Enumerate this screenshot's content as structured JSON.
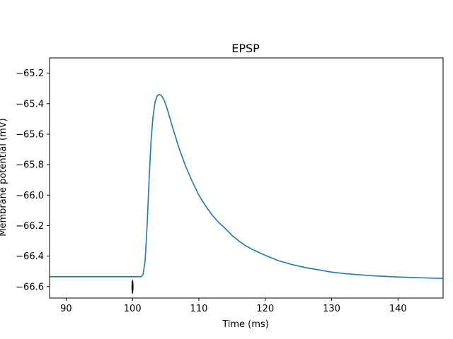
{
  "chart_data": {
    "type": "line",
    "title": "EPSP",
    "xlabel": "Time (ms)",
    "ylabel": "Membrane potential (mV)",
    "xlim": [
      87.5,
      146.8
    ],
    "ylim": [
      -66.675,
      -65.1
    ],
    "grid": false,
    "xticks": [
      90,
      100,
      110,
      120,
      130,
      140
    ],
    "yticks": [
      -66.6,
      -66.4,
      -66.2,
      -66.0,
      -65.8,
      -65.6,
      -65.4,
      -65.2
    ],
    "xtick_labels": [
      "90",
      "100",
      "110",
      "120",
      "130",
      "140"
    ],
    "ytick_labels": [
      "−66.6",
      "−66.4",
      "−66.2",
      "−66.0",
      "−65.8",
      "−65.6",
      "−65.4",
      "−65.2"
    ],
    "series": [
      {
        "color": "#1f77b4",
        "x": [
          87.5,
          90,
          95,
          100,
          101.3,
          101.6,
          101.9,
          102.2,
          102.5,
          102.8,
          103.1,
          103.4,
          103.7,
          104.0,
          104.2,
          104.5,
          104.8,
          105.2,
          105.6,
          106,
          106.5,
          107,
          107.5,
          108,
          109,
          110,
          111,
          112,
          113,
          114,
          115,
          116,
          117,
          118,
          119,
          120,
          122,
          124,
          126,
          128,
          130,
          132,
          134,
          136,
          138,
          140,
          142,
          144,
          146.8
        ],
        "y": [
          -66.535,
          -66.535,
          -66.535,
          -66.535,
          -66.535,
          -66.52,
          -66.43,
          -66.2,
          -65.9,
          -65.64,
          -65.48,
          -65.39,
          -65.35,
          -65.34,
          -65.342,
          -65.355,
          -65.38,
          -65.43,
          -65.49,
          -65.55,
          -65.62,
          -65.69,
          -65.75,
          -65.81,
          -65.91,
          -66.0,
          -66.07,
          -66.13,
          -66.18,
          -66.22,
          -66.265,
          -66.3,
          -66.33,
          -66.355,
          -66.375,
          -66.395,
          -66.43,
          -66.455,
          -66.475,
          -66.49,
          -66.505,
          -66.515,
          -66.522,
          -66.528,
          -66.533,
          -66.537,
          -66.54,
          -66.543,
          -66.546
        ]
      }
    ],
    "annotations": [
      {
        "type": "stimulus-marker",
        "x": 100
      }
    ]
  }
}
